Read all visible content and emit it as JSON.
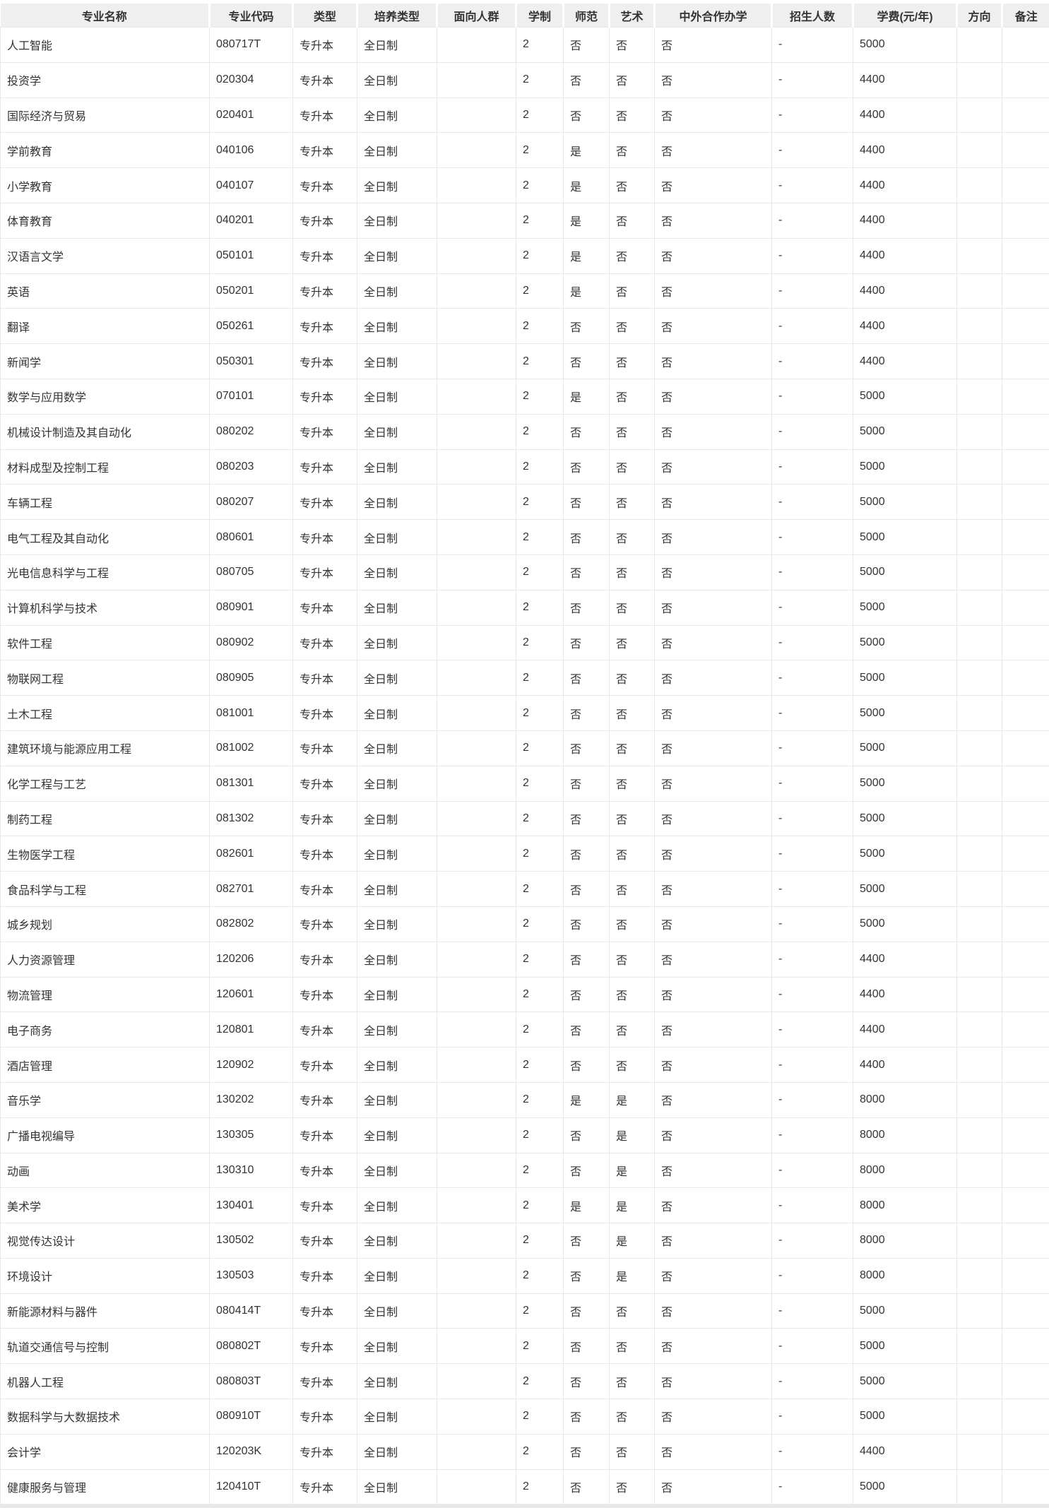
{
  "theme": {
    "header_bg": "#efefef",
    "border_color": "#e8e8e8",
    "text_color": "#333333",
    "row_bg": "#ffffff"
  },
  "table": {
    "columns": [
      {
        "id": "major-name",
        "label": "专业名称"
      },
      {
        "id": "major-code",
        "label": "专业代码"
      },
      {
        "id": "type",
        "label": "类型"
      },
      {
        "id": "training-type",
        "label": "培养类型"
      },
      {
        "id": "audience",
        "label": "面向人群"
      },
      {
        "id": "duration",
        "label": "学制"
      },
      {
        "id": "normal-education",
        "label": "师范"
      },
      {
        "id": "art",
        "label": "艺术"
      },
      {
        "id": "sino-foreign-program",
        "label": "中外合作办学"
      },
      {
        "id": "enrollment",
        "label": "招生人数"
      },
      {
        "id": "tuition",
        "label": "学费(元/年)"
      },
      {
        "id": "direction",
        "label": "方向"
      },
      {
        "id": "remark",
        "label": "备注"
      }
    ],
    "rows": [
      [
        "人工智能",
        "080717T",
        "专升本",
        "全日制",
        "",
        "2",
        "否",
        "否",
        "否",
        "-",
        "5000",
        "",
        ""
      ],
      [
        "投资学",
        "020304",
        "专升本",
        "全日制",
        "",
        "2",
        "否",
        "否",
        "否",
        "-",
        "4400",
        "",
        ""
      ],
      [
        "国际经济与贸易",
        "020401",
        "专升本",
        "全日制",
        "",
        "2",
        "否",
        "否",
        "否",
        "-",
        "4400",
        "",
        ""
      ],
      [
        "学前教育",
        "040106",
        "专升本",
        "全日制",
        "",
        "2",
        "是",
        "否",
        "否",
        "-",
        "4400",
        "",
        ""
      ],
      [
        "小学教育",
        "040107",
        "专升本",
        "全日制",
        "",
        "2",
        "是",
        "否",
        "否",
        "-",
        "4400",
        "",
        ""
      ],
      [
        "体育教育",
        "040201",
        "专升本",
        "全日制",
        "",
        "2",
        "是",
        "否",
        "否",
        "-",
        "4400",
        "",
        ""
      ],
      [
        "汉语言文学",
        "050101",
        "专升本",
        "全日制",
        "",
        "2",
        "是",
        "否",
        "否",
        "-",
        "4400",
        "",
        ""
      ],
      [
        "英语",
        "050201",
        "专升本",
        "全日制",
        "",
        "2",
        "是",
        "否",
        "否",
        "-",
        "4400",
        "",
        ""
      ],
      [
        "翻译",
        "050261",
        "专升本",
        "全日制",
        "",
        "2",
        "否",
        "否",
        "否",
        "-",
        "4400",
        "",
        ""
      ],
      [
        "新闻学",
        "050301",
        "专升本",
        "全日制",
        "",
        "2",
        "否",
        "否",
        "否",
        "-",
        "4400",
        "",
        ""
      ],
      [
        "数学与应用数学",
        "070101",
        "专升本",
        "全日制",
        "",
        "2",
        "是",
        "否",
        "否",
        "-",
        "5000",
        "",
        ""
      ],
      [
        "机械设计制造及其自动化",
        "080202",
        "专升本",
        "全日制",
        "",
        "2",
        "否",
        "否",
        "否",
        "-",
        "5000",
        "",
        ""
      ],
      [
        "材料成型及控制工程",
        "080203",
        "专升本",
        "全日制",
        "",
        "2",
        "否",
        "否",
        "否",
        "-",
        "5000",
        "",
        ""
      ],
      [
        "车辆工程",
        "080207",
        "专升本",
        "全日制",
        "",
        "2",
        "否",
        "否",
        "否",
        "-",
        "5000",
        "",
        ""
      ],
      [
        "电气工程及其自动化",
        "080601",
        "专升本",
        "全日制",
        "",
        "2",
        "否",
        "否",
        "否",
        "-",
        "5000",
        "",
        ""
      ],
      [
        "光电信息科学与工程",
        "080705",
        "专升本",
        "全日制",
        "",
        "2",
        "否",
        "否",
        "否",
        "-",
        "5000",
        "",
        ""
      ],
      [
        "计算机科学与技术",
        "080901",
        "专升本",
        "全日制",
        "",
        "2",
        "否",
        "否",
        "否",
        "-",
        "5000",
        "",
        ""
      ],
      [
        "软件工程",
        "080902",
        "专升本",
        "全日制",
        "",
        "2",
        "否",
        "否",
        "否",
        "-",
        "5000",
        "",
        ""
      ],
      [
        "物联网工程",
        "080905",
        "专升本",
        "全日制",
        "",
        "2",
        "否",
        "否",
        "否",
        "-",
        "5000",
        "",
        ""
      ],
      [
        "土木工程",
        "081001",
        "专升本",
        "全日制",
        "",
        "2",
        "否",
        "否",
        "否",
        "-",
        "5000",
        "",
        ""
      ],
      [
        "建筑环境与能源应用工程",
        "081002",
        "专升本",
        "全日制",
        "",
        "2",
        "否",
        "否",
        "否",
        "-",
        "5000",
        "",
        ""
      ],
      [
        "化学工程与工艺",
        "081301",
        "专升本",
        "全日制",
        "",
        "2",
        "否",
        "否",
        "否",
        "-",
        "5000",
        "",
        ""
      ],
      [
        "制药工程",
        "081302",
        "专升本",
        "全日制",
        "",
        "2",
        "否",
        "否",
        "否",
        "-",
        "5000",
        "",
        ""
      ],
      [
        "生物医学工程",
        "082601",
        "专升本",
        "全日制",
        "",
        "2",
        "否",
        "否",
        "否",
        "-",
        "5000",
        "",
        ""
      ],
      [
        "食品科学与工程",
        "082701",
        "专升本",
        "全日制",
        "",
        "2",
        "否",
        "否",
        "否",
        "-",
        "5000",
        "",
        ""
      ],
      [
        "城乡规划",
        "082802",
        "专升本",
        "全日制",
        "",
        "2",
        "否",
        "否",
        "否",
        "-",
        "5000",
        "",
        ""
      ],
      [
        "人力资源管理",
        "120206",
        "专升本",
        "全日制",
        "",
        "2",
        "否",
        "否",
        "否",
        "-",
        "4400",
        "",
        ""
      ],
      [
        "物流管理",
        "120601",
        "专升本",
        "全日制",
        "",
        "2",
        "否",
        "否",
        "否",
        "-",
        "4400",
        "",
        ""
      ],
      [
        "电子商务",
        "120801",
        "专升本",
        "全日制",
        "",
        "2",
        "否",
        "否",
        "否",
        "-",
        "4400",
        "",
        ""
      ],
      [
        "酒店管理",
        "120902",
        "专升本",
        "全日制",
        "",
        "2",
        "否",
        "否",
        "否",
        "-",
        "4400",
        "",
        ""
      ],
      [
        "音乐学",
        "130202",
        "专升本",
        "全日制",
        "",
        "2",
        "是",
        "是",
        "否",
        "-",
        "8000",
        "",
        ""
      ],
      [
        "广播电视编导",
        "130305",
        "专升本",
        "全日制",
        "",
        "2",
        "否",
        "是",
        "否",
        "-",
        "8000",
        "",
        ""
      ],
      [
        "动画",
        "130310",
        "专升本",
        "全日制",
        "",
        "2",
        "否",
        "是",
        "否",
        "-",
        "8000",
        "",
        ""
      ],
      [
        "美术学",
        "130401",
        "专升本",
        "全日制",
        "",
        "2",
        "是",
        "是",
        "否",
        "-",
        "8000",
        "",
        ""
      ],
      [
        "视觉传达设计",
        "130502",
        "专升本",
        "全日制",
        "",
        "2",
        "否",
        "是",
        "否",
        "-",
        "8000",
        "",
        ""
      ],
      [
        "环境设计",
        "130503",
        "专升本",
        "全日制",
        "",
        "2",
        "否",
        "是",
        "否",
        "-",
        "8000",
        "",
        ""
      ],
      [
        "新能源材料与器件",
        "080414T",
        "专升本",
        "全日制",
        "",
        "2",
        "否",
        "否",
        "否",
        "-",
        "5000",
        "",
        ""
      ],
      [
        "轨道交通信号与控制",
        "080802T",
        "专升本",
        "全日制",
        "",
        "2",
        "否",
        "否",
        "否",
        "-",
        "5000",
        "",
        ""
      ],
      [
        "机器人工程",
        "080803T",
        "专升本",
        "全日制",
        "",
        "2",
        "否",
        "否",
        "否",
        "-",
        "5000",
        "",
        ""
      ],
      [
        "数据科学与大数据技术",
        "080910T",
        "专升本",
        "全日制",
        "",
        "2",
        "否",
        "否",
        "否",
        "-",
        "5000",
        "",
        ""
      ],
      [
        "会计学",
        "120203K",
        "专升本",
        "全日制",
        "",
        "2",
        "否",
        "否",
        "否",
        "-",
        "4400",
        "",
        ""
      ],
      [
        "健康服务与管理",
        "120410T",
        "专升本",
        "全日制",
        "",
        "2",
        "否",
        "否",
        "否",
        "-",
        "5000",
        "",
        ""
      ]
    ]
  }
}
